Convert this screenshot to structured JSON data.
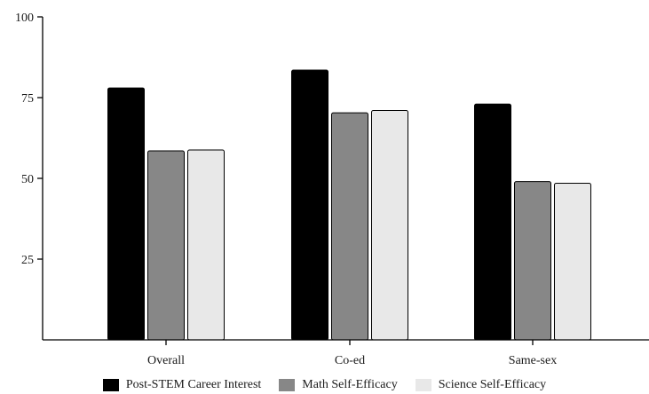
{
  "chart_data": {
    "type": "bar",
    "categories": [
      "Overall",
      "Co-ed",
      "Same-sex"
    ],
    "series": [
      {
        "name": "Post-STEM Career Interest",
        "values": [
          78,
          83.5,
          73
        ],
        "color": "#000000"
      },
      {
        "name": "Math Self-Efficacy",
        "values": [
          58.5,
          70.3,
          49
        ],
        "color": "#878787"
      },
      {
        "name": "Science Self-Efficacy",
        "values": [
          58.8,
          71,
          48.5
        ],
        "color": "#e8e8e8"
      }
    ],
    "y_ticks": [
      "25",
      "50",
      "75",
      "100"
    ],
    "ylim": [
      0,
      100
    ],
    "grid": false,
    "legend_position": "bottom"
  }
}
